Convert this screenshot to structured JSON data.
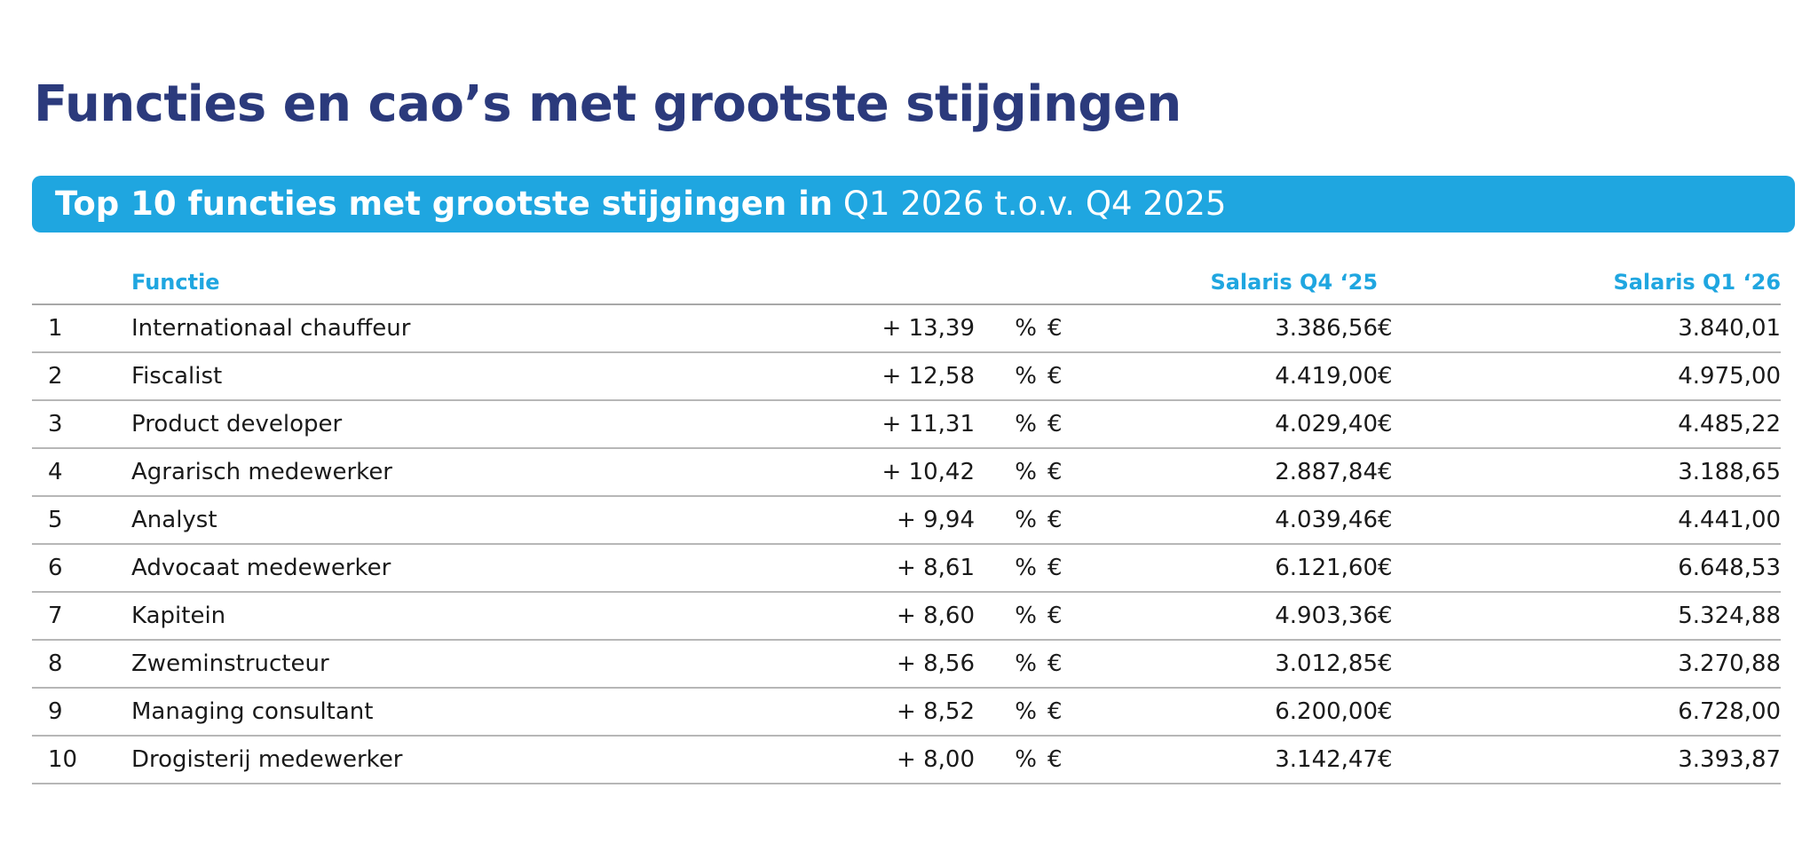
{
  "page_title": "Functies en cao’s met grootste stijgingen",
  "banner": {
    "text_bold": "Top 10 functies met grootste stijgingen in",
    "text_regular": "Q1 2026 t.o.v. Q4 2025"
  },
  "table": {
    "headers": {
      "rank": "",
      "function": "Functie",
      "change": "",
      "salary_q4": "Salaris Q4 ‘25",
      "salary_q1": "Salaris Q1 ‘26"
    },
    "currency_symbol": "€",
    "percent_symbol": "%",
    "rows": [
      {
        "rank": "1",
        "function": "Internationaal chauffeur",
        "change": "+ 13,39",
        "q4": "3.386,56",
        "q1": "3.840,01"
      },
      {
        "rank": "2",
        "function": "Fiscalist",
        "change": "+ 12,58",
        "q4": "4.419,00",
        "q1": "4.975,00"
      },
      {
        "rank": "3",
        "function": "Product developer",
        "change": "+ 11,31",
        "q4": "4.029,40",
        "q1": "4.485,22"
      },
      {
        "rank": "4",
        "function": "Agrarisch medewerker",
        "change": "+ 10,42",
        "q4": "2.887,84",
        "q1": "3.188,65"
      },
      {
        "rank": "5",
        "function": "Analyst",
        "change": "+ 9,94",
        "q4": "4.039,46",
        "q1": "4.441,00"
      },
      {
        "rank": "6",
        "function": "Advocaat medewerker",
        "change": "+ 8,61",
        "q4": "6.121,60",
        "q1": "6.648,53"
      },
      {
        "rank": "7",
        "function": "Kapitein",
        "change": "+ 8,60",
        "q4": "4.903,36",
        "q1": "5.324,88"
      },
      {
        "rank": "8",
        "function": "Zweminstructeur",
        "change": "+ 8,56",
        "q4": "3.012,85",
        "q1": "3.270,88"
      },
      {
        "rank": "9",
        "function": "Managing consultant",
        "change": "+ 8,52",
        "q4": "6.200,00",
        "q1": "6.728,00"
      },
      {
        "rank": "10",
        "function": "Drogisterij medewerker",
        "change": "+ 8,00",
        "q4": "3.142,47",
        "q1": "3.393,87"
      }
    ]
  }
}
